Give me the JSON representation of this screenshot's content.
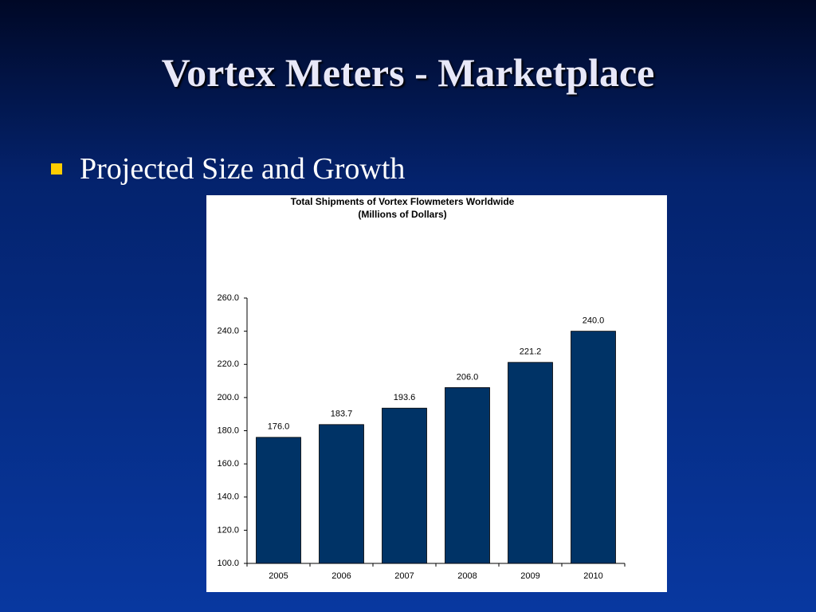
{
  "slide": {
    "title": "Vortex Meters - Marketplace",
    "bullet": "Projected Size and Growth"
  },
  "chart_data": {
    "type": "bar",
    "title": "Total Shipments of Vortex Flowmeters Worldwide",
    "subtitle": "(Millions of Dollars)",
    "categories": [
      "2005",
      "2006",
      "2007",
      "2008",
      "2009",
      "2010"
    ],
    "values": [
      176,
      183.7,
      193.6,
      206,
      221.2,
      240
    ],
    "value_labels": [
      "176.0",
      "183.7",
      "193.6",
      "206.0",
      "221.2",
      "240.0"
    ],
    "color": "#003366",
    "ylim": [
      100,
      260
    ],
    "yticks": [
      {
        "value": 100,
        "label": "100.0"
      },
      {
        "value": 120,
        "label": "120.0"
      },
      {
        "value": 140,
        "label": "140.0"
      },
      {
        "value": 160,
        "label": "160.0"
      },
      {
        "value": 180,
        "label": "180.0"
      },
      {
        "value": 200,
        "label": "200.0"
      },
      {
        "value": 220,
        "label": "220.0"
      },
      {
        "value": 240,
        "label": "240.0"
      },
      {
        "value": 260,
        "label": "260.0"
      }
    ],
    "grid": false
  }
}
